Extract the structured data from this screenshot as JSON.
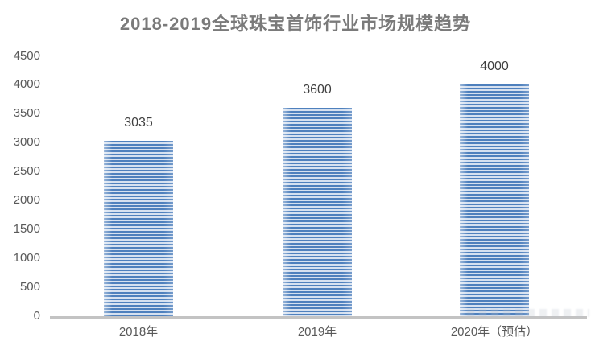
{
  "chart_data": {
    "type": "bar",
    "title": "2018-2019全球珠宝首饰行业市场规模趋势",
    "categories": [
      "2018年",
      "2019年",
      "2020年（预估）"
    ],
    "values": [
      3035,
      3600,
      4000
    ],
    "bar_labels": [
      "3035",
      "3600",
      "4000"
    ],
    "xlabel": "",
    "ylabel": "",
    "ylim": [
      0,
      4500
    ],
    "ytick_interval": 500,
    "ytick_labels": [
      "0",
      "500",
      "1000",
      "1500",
      "2000",
      "2500",
      "3000",
      "3500",
      "4000",
      "4500"
    ],
    "grid": false,
    "legend": false,
    "bar_fill_style": "horizontal-stripes"
  },
  "colors": {
    "title_text": "#7a7a7a",
    "axis_text": "#595959",
    "data_label_text": "#3f3f3f",
    "axis_line": "#c3c3c3",
    "bar_stripe_dark": "#4e80bd",
    "bar_stripe_light": "#d6e1f0"
  }
}
